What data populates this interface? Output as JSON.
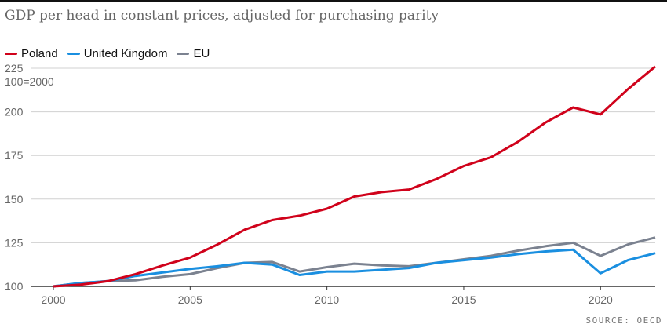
{
  "title": "GDP per head in constant prices, adjusted for purchasing parity",
  "source": "SOURCE: OECD",
  "chart_data": {
    "type": "line",
    "title": "GDP per head in constant prices, adjusted for purchasing parity",
    "ylabel": "100=2000",
    "x": [
      2000,
      2001,
      2002,
      2003,
      2004,
      2005,
      2006,
      2007,
      2008,
      2009,
      2010,
      2011,
      2012,
      2013,
      2014,
      2015,
      2016,
      2017,
      2018,
      2019,
      2020,
      2021,
      2022
    ],
    "xlim": [
      2000,
      2022
    ],
    "ylim": [
      100,
      225
    ],
    "xticks": [
      2000,
      2005,
      2010,
      2015,
      2020
    ],
    "yticks": [
      100,
      125,
      150,
      175,
      200,
      225
    ],
    "grid": true,
    "legend": "top-left",
    "series": [
      {
        "name": "Poland",
        "color": "#d0021b",
        "values": [
          100,
          101,
          103,
          107,
          112,
          116.5,
          124,
          132.5,
          138,
          140.5,
          144.5,
          151.5,
          154,
          155.5,
          161.5,
          169,
          174,
          183,
          194,
          202.5,
          198.5,
          213,
          226
        ]
      },
      {
        "name": "United Kingdom",
        "color": "#1a8fe0",
        "values": [
          100,
          102,
          103,
          106,
          108,
          110,
          111.5,
          113.5,
          112.5,
          106.5,
          108.5,
          108.5,
          109.5,
          110.5,
          113.5,
          115,
          116.5,
          118.5,
          120,
          121,
          107.5,
          115,
          119
        ]
      },
      {
        "name": "EU",
        "color": "#7b8290",
        "values": [
          100,
          102,
          103,
          103.5,
          105.5,
          107,
          110.5,
          113.5,
          114,
          108.5,
          111,
          113,
          112,
          111.5,
          113.5,
          115.5,
          117.5,
          120.5,
          123,
          125,
          117.5,
          124,
          128
        ]
      }
    ]
  }
}
